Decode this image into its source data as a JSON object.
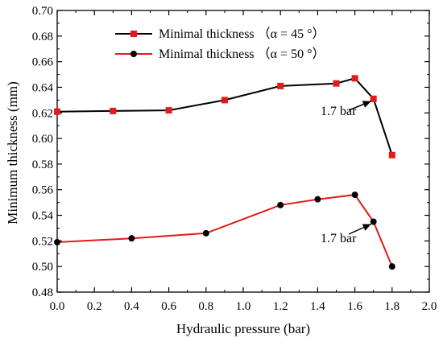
{
  "chart_data": {
    "type": "line",
    "xlabel": "Hydraulic pressure (bar)",
    "ylabel": "Minimum thickness (mm)",
    "xlim": [
      0.0,
      2.0
    ],
    "ylim": [
      0.48,
      0.7
    ],
    "x_ticks": [
      "0.0",
      "0.2",
      "0.4",
      "0.6",
      "0.8",
      "1.0",
      "1.2",
      "1.4",
      "1.6",
      "1.8",
      "2.0"
    ],
    "y_ticks": [
      "0.48",
      "0.50",
      "0.52",
      "0.54",
      "0.56",
      "0.58",
      "0.60",
      "0.62",
      "0.64",
      "0.66",
      "0.68",
      "0.70"
    ],
    "grid": false,
    "legend_position": "top-center",
    "series": [
      {
        "name": "Minimal thickness （α = 45 °）",
        "line_color": "#000000",
        "marker_color": "#e31a1c",
        "marker": "square",
        "x": [
          0.0,
          0.3,
          0.6,
          0.9,
          1.2,
          1.5,
          1.6,
          1.7,
          1.8
        ],
        "y": [
          0.621,
          0.6215,
          0.622,
          0.63,
          0.641,
          0.643,
          0.647,
          0.631,
          0.587
        ]
      },
      {
        "name": "Minimal thickness （α = 50 °）",
        "line_color": "#e31a1c",
        "marker_color": "#000000",
        "marker": "circle",
        "x": [
          0.0,
          0.4,
          0.8,
          1.2,
          1.4,
          1.6,
          1.7,
          1.8
        ],
        "y": [
          0.519,
          0.522,
          0.526,
          0.548,
          0.5525,
          0.556,
          0.535,
          0.5
        ]
      }
    ],
    "annotations": [
      {
        "text": "1.7 bar",
        "series": 0,
        "target_x": 1.7,
        "target_y": 0.631
      },
      {
        "text": "1.7 bar",
        "series": 1,
        "target_x": 1.7,
        "target_y": 0.535
      }
    ]
  }
}
